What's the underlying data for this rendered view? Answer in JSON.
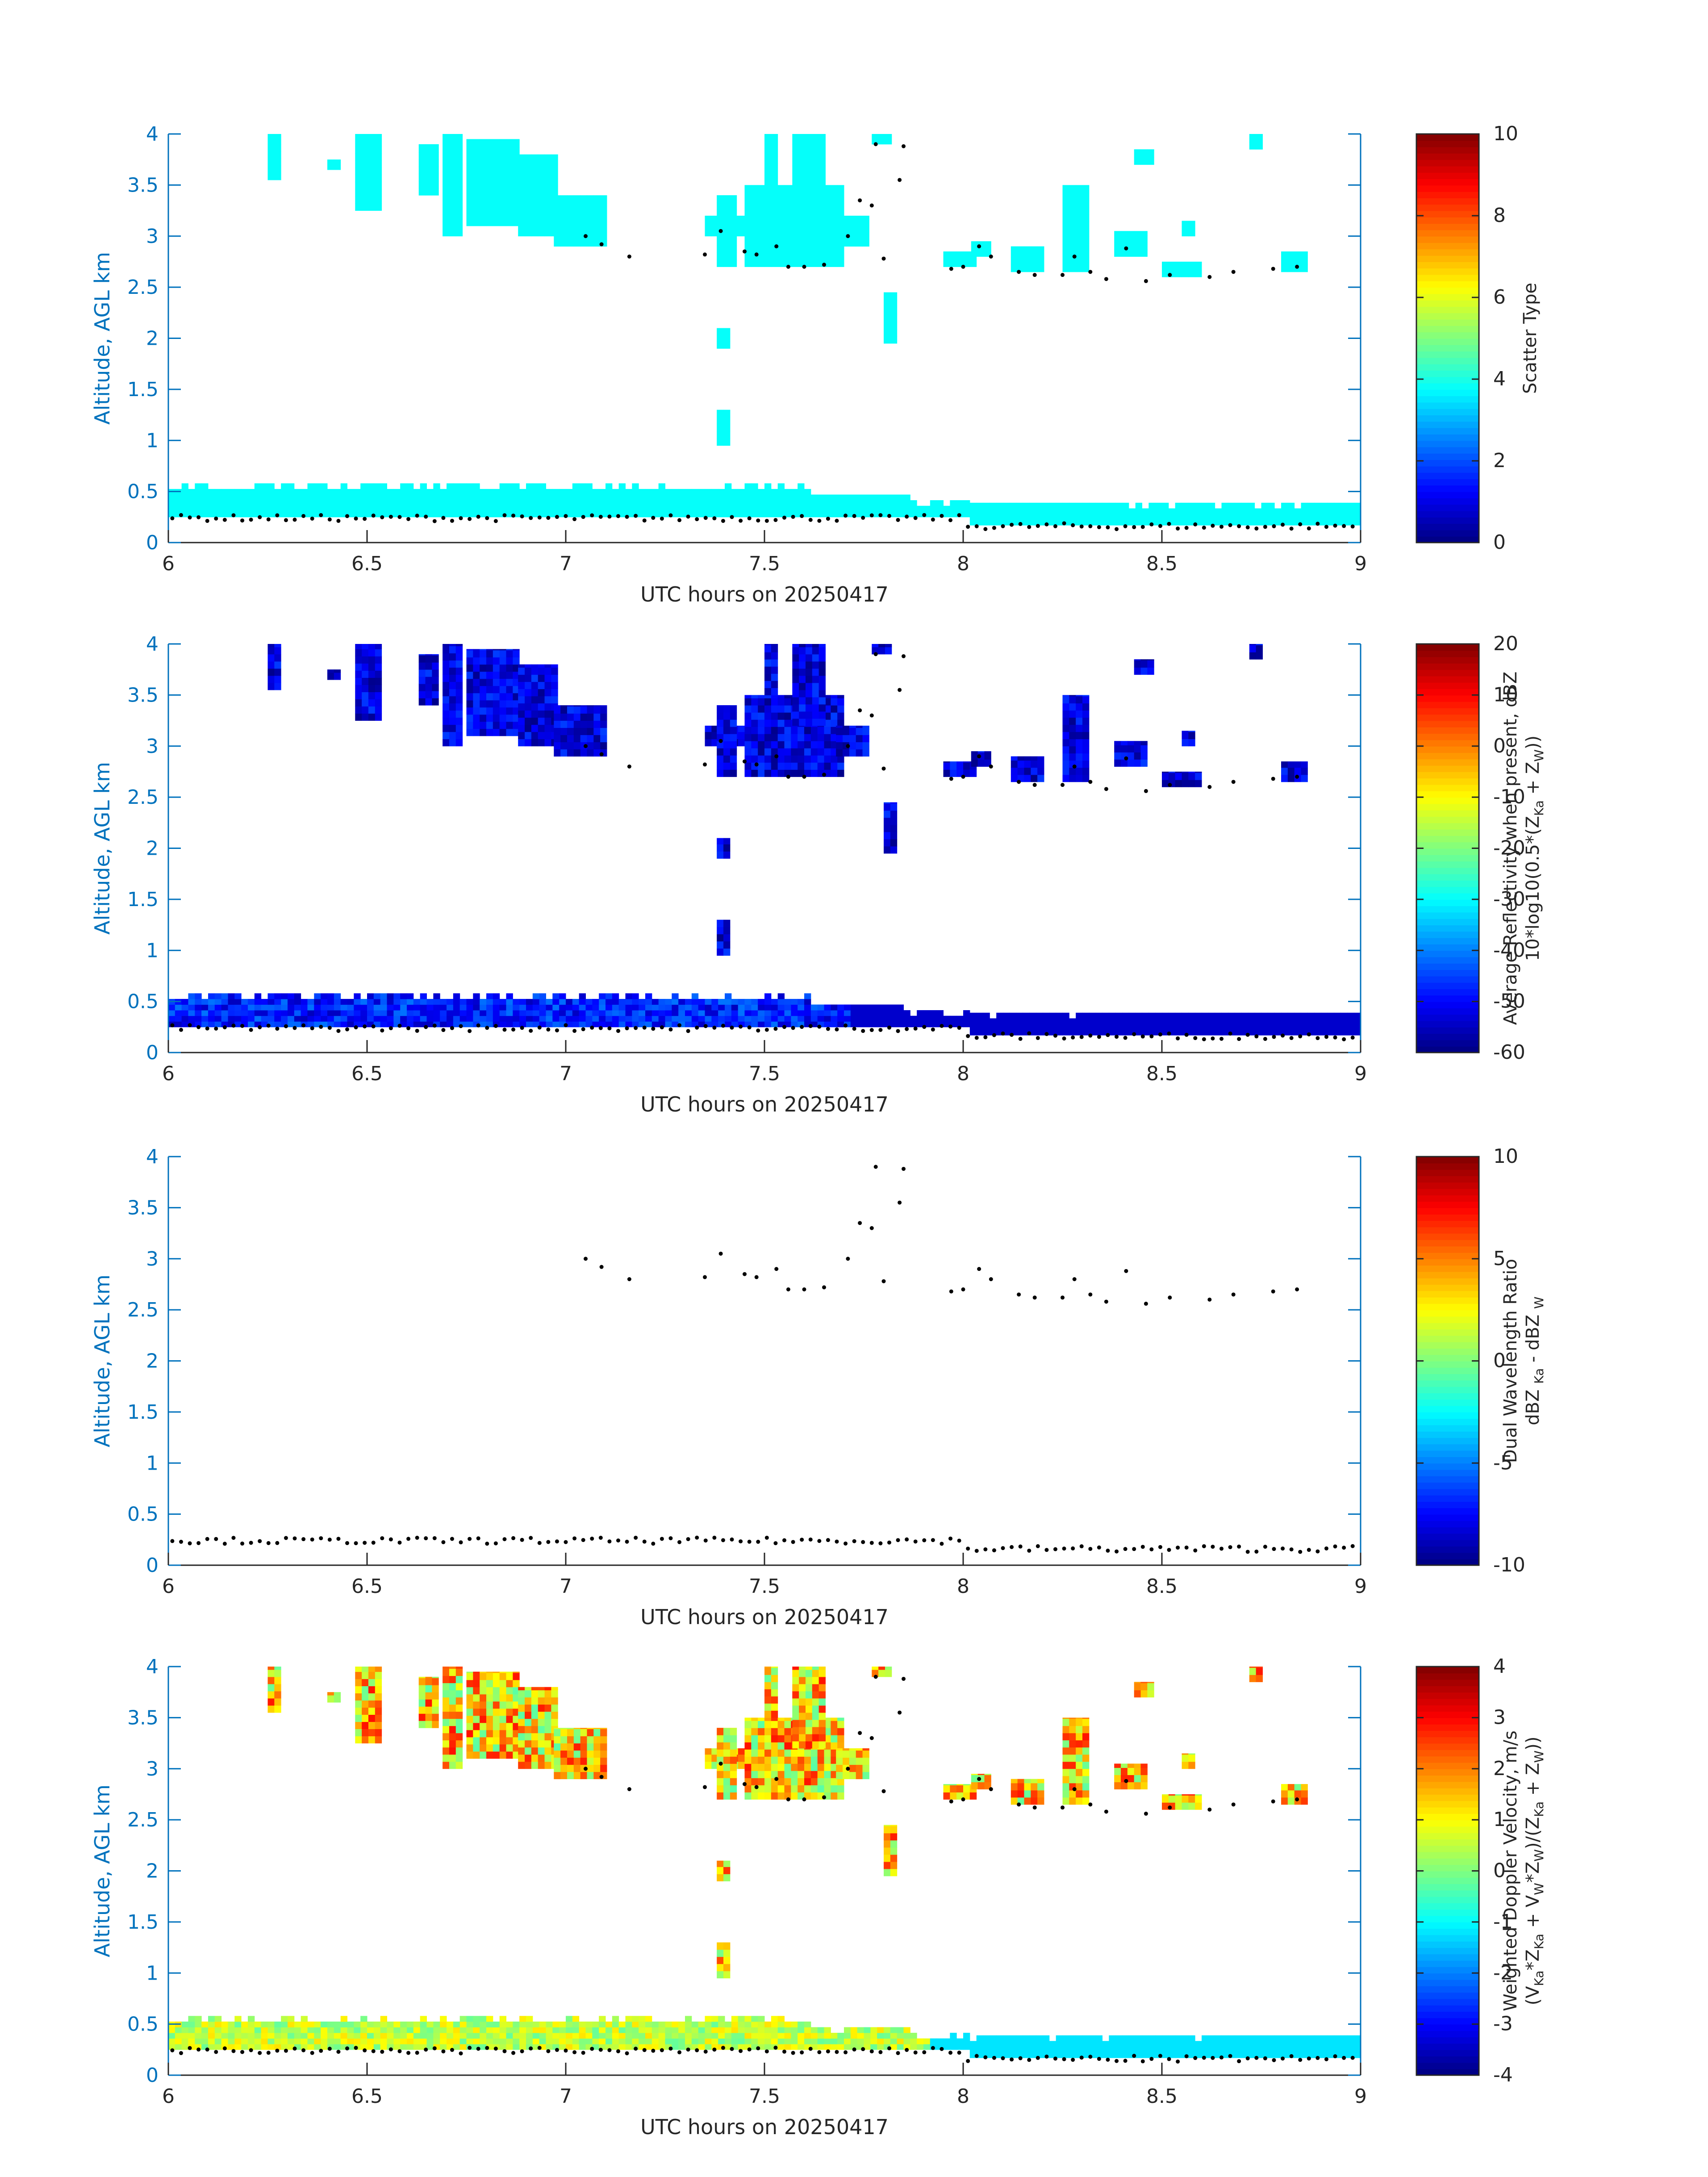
{
  "chart_data": [
    {
      "type": "heatmap",
      "xlabel": "UTC hours on 20250417",
      "ylabel": "Altitude, AGL km",
      "xlim": [
        6,
        9
      ],
      "ylim": [
        0,
        4
      ],
      "xticks": [
        6,
        6.5,
        7,
        7.5,
        8,
        8.5,
        9
      ],
      "xtick_labels": [
        "6",
        "6.5",
        "7",
        "7.5",
        "8",
        "8.5",
        "9"
      ],
      "yticks": [
        0,
        0.5,
        1,
        1.5,
        2,
        2.5,
        3,
        3.5,
        4
      ],
      "ytick_labels": [
        "0",
        "0.5",
        "1",
        "1.5",
        "2",
        "2.5",
        "3",
        "3.5",
        "4"
      ],
      "colorbar": {
        "label_lines": [
          "Scatter Type"
        ],
        "clim": [
          0,
          10
        ],
        "ticks": [
          0,
          2,
          4,
          6,
          8,
          10
        ],
        "tick_labels": [
          "0",
          "2",
          "4",
          "6",
          "8",
          "10"
        ],
        "colormap": "jet"
      },
      "layer_values": {
        "low": 3.8,
        "cloud": 3.8
      }
    },
    {
      "type": "heatmap",
      "xlabel": "UTC hours on 20250417",
      "ylabel": "Altitude, AGL km",
      "xlim": [
        6,
        9
      ],
      "ylim": [
        0,
        4
      ],
      "xticks": [
        6,
        6.5,
        7,
        7.5,
        8,
        8.5,
        9
      ],
      "xtick_labels": [
        "6",
        "6.5",
        "7",
        "7.5",
        "8",
        "8.5",
        "9"
      ],
      "yticks": [
        0,
        0.5,
        1,
        1.5,
        2,
        2.5,
        3,
        3.5,
        4
      ],
      "ytick_labels": [
        "0",
        "0.5",
        "1",
        "1.5",
        "2",
        "2.5",
        "3",
        "3.5",
        "4"
      ],
      "colorbar": {
        "label_lines": [
          "Average Reflectivity when present, dBZ",
          "10*log10(0.5*(Z",
          "Ka",
          " + Z",
          "W",
          "))"
        ],
        "clim": [
          -60,
          20
        ],
        "ticks": [
          -60,
          -50,
          -40,
          -30,
          -20,
          -10,
          0,
          10,
          20
        ],
        "tick_labels": [
          "-60",
          "-50",
          "-40",
          "-30",
          "-20",
          "-10",
          "0",
          "10",
          "20"
        ],
        "colormap": "jet"
      },
      "layer_values": {
        "low": -48,
        "cloud": -55
      }
    },
    {
      "type": "heatmap",
      "xlabel": "UTC hours on 20250417",
      "ylabel": "Altitude, AGL km",
      "xlim": [
        6,
        9
      ],
      "ylim": [
        0,
        4
      ],
      "xticks": [
        6,
        6.5,
        7,
        7.5,
        8,
        8.5,
        9
      ],
      "xtick_labels": [
        "6",
        "6.5",
        "7",
        "7.5",
        "8",
        "8.5",
        "9"
      ],
      "yticks": [
        0,
        0.5,
        1,
        1.5,
        2,
        2.5,
        3,
        3.5,
        4
      ],
      "ytick_labels": [
        "0",
        "0.5",
        "1",
        "1.5",
        "2",
        "2.5",
        "3",
        "3.5",
        "4"
      ],
      "colorbar": {
        "label_lines": [
          "Dual Wavelength Ratio",
          "dBZ ",
          "Ka",
          " - dBZ ",
          "W"
        ],
        "clim": [
          -10,
          10
        ],
        "ticks": [
          -10,
          -5,
          0,
          5,
          10
        ],
        "tick_labels": [
          "-10",
          "-5",
          "0",
          "5",
          "10"
        ],
        "colormap": "jet"
      },
      "layer_values": null
    },
    {
      "type": "heatmap",
      "xlabel": "UTC hours on 20250417",
      "ylabel": "Altitude, AGL km",
      "xlim": [
        6,
        9
      ],
      "ylim": [
        0,
        4
      ],
      "xticks": [
        6,
        6.5,
        7,
        7.5,
        8,
        8.5,
        9
      ],
      "xtick_labels": [
        "6",
        "6.5",
        "7",
        "7.5",
        "8",
        "8.5",
        "9"
      ],
      "yticks": [
        0,
        0.5,
        1,
        1.5,
        2,
        2.5,
        3,
        3.5,
        4
      ],
      "ytick_labels": [
        "0",
        "0.5",
        "1",
        "1.5",
        "2",
        "2.5",
        "3",
        "3.5",
        "4"
      ],
      "colorbar": {
        "label_lines": [
          "Weighted Doppler Velocity, m/s",
          "(V",
          "Ka",
          "*Z",
          "Ka",
          " + V",
          "W",
          "*Z",
          "W",
          ")/(Z",
          "Ka",
          " + Z",
          "W",
          "))"
        ],
        "clim": [
          -4,
          4
        ],
        "ticks": [
          -4,
          -3,
          -2,
          -1,
          0,
          1,
          2,
          3,
          4
        ],
        "tick_labels": [
          "-4",
          "-3",
          "-2",
          "-1",
          "0",
          "1",
          "2",
          "3",
          "4"
        ],
        "colormap": "jet"
      },
      "layer_values": {
        "low": 0.5,
        "cloud": 0.8
      }
    }
  ],
  "shared": {
    "cloud_regions": [
      {
        "x": [
          6.25,
          6.28
        ],
        "y": [
          3.55,
          4.0
        ]
      },
      {
        "x": [
          6.4,
          6.43
        ],
        "y": [
          3.65,
          3.75
        ]
      },
      {
        "x": [
          6.47,
          6.53
        ],
        "y": [
          3.25,
          4.0
        ]
      },
      {
        "x": [
          6.63,
          6.68
        ],
        "y": [
          3.4,
          3.9
        ]
      },
      {
        "x": [
          6.69,
          6.74
        ],
        "y": [
          3.0,
          4.0
        ]
      },
      {
        "x": [
          6.75,
          6.88
        ],
        "y": [
          3.1,
          3.95
        ]
      },
      {
        "x": [
          6.88,
          6.97
        ],
        "y": [
          3.0,
          3.8
        ]
      },
      {
        "x": [
          6.97,
          7.1
        ],
        "y": [
          2.9,
          3.4
        ]
      },
      {
        "x": [
          7.35,
          7.45
        ],
        "y": [
          3.0,
          3.2
        ]
      },
      {
        "x": [
          7.38,
          7.43
        ],
        "y": [
          2.7,
          3.4
        ]
      },
      {
        "x": [
          7.38,
          7.4
        ],
        "y": [
          1.9,
          2.1
        ]
      },
      {
        "x": [
          7.38,
          7.41
        ],
        "y": [
          0.95,
          1.3
        ]
      },
      {
        "x": [
          7.45,
          7.69
        ],
        "y": [
          2.7,
          3.5
        ]
      },
      {
        "x": [
          7.5,
          7.53
        ],
        "y": [
          3.5,
          4.0
        ]
      },
      {
        "x": [
          7.57,
          7.64
        ],
        "y": [
          3.2,
          4.0
        ]
      },
      {
        "x": [
          7.68,
          7.75
        ],
        "y": [
          2.9,
          3.2
        ]
      },
      {
        "x": [
          7.77,
          7.81
        ],
        "y": [
          3.9,
          4.0
        ]
      },
      {
        "x": [
          7.8,
          7.82
        ],
        "y": [
          1.95,
          2.45
        ]
      },
      {
        "x": [
          7.95,
          8.03
        ],
        "y": [
          2.7,
          2.85
        ]
      },
      {
        "x": [
          8.02,
          8.06
        ],
        "y": [
          2.8,
          2.95
        ]
      },
      {
        "x": [
          8.12,
          8.2
        ],
        "y": [
          2.65,
          2.9
        ]
      },
      {
        "x": [
          8.25,
          8.31
        ],
        "y": [
          2.65,
          3.5
        ]
      },
      {
        "x": [
          8.38,
          8.46
        ],
        "y": [
          2.8,
          3.05
        ]
      },
      {
        "x": [
          8.43,
          8.47
        ],
        "y": [
          3.7,
          3.85
        ]
      },
      {
        "x": [
          8.5,
          8.6
        ],
        "y": [
          2.6,
          2.75
        ]
      },
      {
        "x": [
          8.55,
          8.57
        ],
        "y": [
          3.0,
          3.15
        ]
      },
      {
        "x": [
          8.72,
          8.74
        ],
        "y": [
          3.85,
          4.0
        ]
      },
      {
        "x": [
          8.8,
          8.86
        ],
        "y": [
          2.65,
          2.85
        ]
      }
    ],
    "cloud_base_points": [
      [
        7.05,
        3.0
      ],
      [
        7.09,
        2.92
      ],
      [
        7.16,
        2.8
      ],
      [
        7.35,
        2.82
      ],
      [
        7.39,
        3.05
      ],
      [
        7.45,
        2.85
      ],
      [
        7.48,
        2.82
      ],
      [
        7.53,
        2.9
      ],
      [
        7.56,
        2.7
      ],
      [
        7.6,
        2.7
      ],
      [
        7.65,
        2.72
      ],
      [
        7.71,
        3.0
      ],
      [
        7.74,
        3.35
      ],
      [
        7.77,
        3.3
      ],
      [
        7.78,
        3.9
      ],
      [
        7.8,
        2.78
      ],
      [
        7.84,
        3.55
      ],
      [
        7.85,
        3.88
      ],
      [
        7.97,
        2.68
      ],
      [
        8.0,
        2.7
      ],
      [
        8.04,
        2.9
      ],
      [
        8.07,
        2.8
      ],
      [
        8.14,
        2.65
      ],
      [
        8.18,
        2.62
      ],
      [
        8.25,
        2.62
      ],
      [
        8.28,
        2.8
      ],
      [
        8.32,
        2.65
      ],
      [
        8.36,
        2.58
      ],
      [
        8.41,
        2.88
      ],
      [
        8.46,
        2.56
      ],
      [
        8.52,
        2.62
      ],
      [
        8.62,
        2.6
      ],
      [
        8.68,
        2.65
      ],
      [
        8.78,
        2.68
      ],
      [
        8.84,
        2.7
      ]
    ]
  }
}
